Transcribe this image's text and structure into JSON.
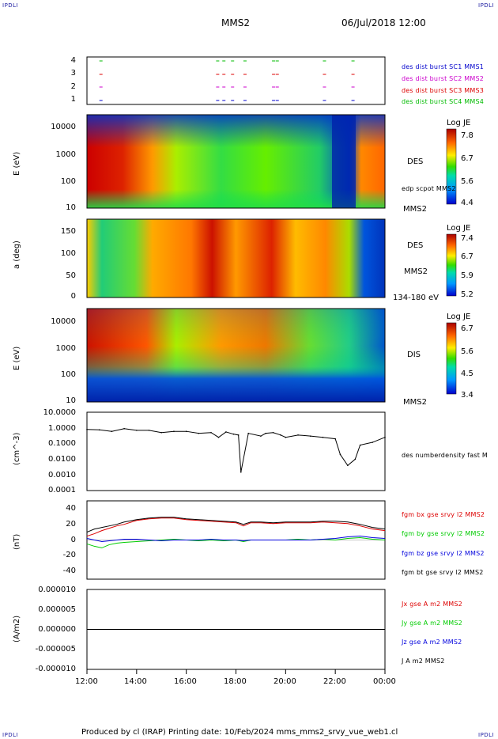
{
  "header": {
    "corner_tl": "IPDLI",
    "corner_tr": "IPDLI",
    "corner_bl": "IPDLI",
    "corner_br": "IPDLI",
    "spacecraft": "MMS2",
    "datetime": "06/Jul/2018 12:00"
  },
  "footer": {
    "credit": "Produced by cl (IRAP)   Printing date: 10/Feb/2024   mms_mms2_srvy_vue_web1.cl"
  },
  "colors": {
    "c1": "#0000cc",
    "c2": "#cc00cc",
    "c3": "#dd0000",
    "c4": "#00bb00",
    "bx": "#dd0000",
    "by": "#00cc00",
    "bz": "#0000dd",
    "bt": "#000000"
  },
  "chart_data": [
    {
      "type": "scatter",
      "panel": "burst",
      "yticks": [
        "1",
        "2",
        "3",
        "4"
      ],
      "ylim": [
        0.5,
        4.5
      ],
      "legend": [
        {
          "name": "des dist burst SC1 MMS1",
          "color": "#0000cc"
        },
        {
          "name": "des dist burst SC2 MMS2",
          "color": "#cc00cc"
        },
        {
          "name": "des dist burst SC3 MMS3",
          "color": "#dd0000"
        },
        {
          "name": "des dist burst SC4 MMS4",
          "color": "#00bb00"
        }
      ],
      "burst_times_h": [
        12.5,
        17.2,
        17.45,
        17.8,
        18.3,
        19.45,
        19.6,
        21.5,
        22.65
      ]
    },
    {
      "type": "heatmap",
      "panel": "des-energy",
      "ylabel": "E (eV)",
      "yticks": [
        "10",
        "100",
        "1000",
        "10000"
      ],
      "ylim_log": [
        1,
        4.4
      ],
      "instrument": "DES",
      "extra_label": "edp scpot MMS2",
      "sc_label": "MMS2",
      "colorbar": {
        "title": "Log JE",
        "ticks": [
          "7.8",
          "6.7",
          "5.6",
          "4.4"
        ]
      }
    },
    {
      "type": "heatmap",
      "panel": "des-pitch",
      "ylabel": "a (deg)",
      "yticks": [
        "0",
        "50",
        "100",
        "150"
      ],
      "ylim": [
        0,
        180
      ],
      "instrument": "DES",
      "sc_label": "MMS2",
      "energy_range": "134-180 eV",
      "colorbar": {
        "title": "Log JE",
        "ticks": [
          "7.4",
          "6.7",
          "5.9",
          "5.2"
        ]
      }
    },
    {
      "type": "heatmap",
      "panel": "dis-energy",
      "ylabel": "E (eV)",
      "yticks": [
        "10",
        "100",
        "1000",
        "10000"
      ],
      "ylim_log": [
        1,
        4.4
      ],
      "instrument": "DIS",
      "sc_label": "MMS2",
      "colorbar": {
        "title": "Log JE",
        "ticks": [
          "6.7",
          "5.6",
          "4.5",
          "3.4"
        ]
      }
    },
    {
      "type": "line",
      "panel": "density",
      "ylabel": "(cm^-3)",
      "yticks": [
        "10.0000",
        "1.0000",
        "0.1000",
        "0.0100",
        "0.0010",
        "0.0001"
      ],
      "ylim_log": [
        -4,
        1
      ],
      "legend": [
        {
          "name": "des numberdensity fast M",
          "color": "#000000"
        }
      ],
      "series": [
        {
          "x": [
            12,
            12.5,
            13,
            13.5,
            14,
            14.5,
            15,
            15.5,
            16,
            16.5,
            17,
            17.3,
            17.6,
            17.9,
            18.1,
            18.2,
            18.5,
            19,
            19.2,
            19.5,
            19.8,
            20,
            20.5,
            21,
            21.5,
            22,
            22.2,
            22.5,
            22.8,
            23,
            23.5,
            24
          ],
          "y": [
            0.8,
            0.75,
            0.6,
            0.9,
            0.7,
            0.7,
            0.5,
            0.6,
            0.6,
            0.45,
            0.5,
            0.25,
            0.55,
            0.4,
            0.35,
            0.0015,
            0.45,
            0.3,
            0.45,
            0.5,
            0.35,
            0.25,
            0.35,
            0.3,
            0.25,
            0.2,
            0.02,
            0.004,
            0.01,
            0.08,
            0.12,
            0.25
          ]
        }
      ]
    },
    {
      "type": "line",
      "panel": "magnetic-field",
      "ylabel": "(nT)",
      "yticks": [
        "40",
        "20",
        "0",
        "-20",
        "-40"
      ],
      "ylim": [
        -50,
        50
      ],
      "legend": [
        {
          "name": "fgm bx gse srvy l2 MMS2",
          "color": "#dd0000"
        },
        {
          "name": "fgm by gse srvy l2 MMS2",
          "color": "#00cc00"
        },
        {
          "name": "fgm bz gse srvy l2 MMS2",
          "color": "#0000dd"
        },
        {
          "name": "fgm bt gse srvy l2 MMS2",
          "color": "#000000"
        }
      ],
      "x": [
        12,
        12.3,
        12.6,
        12.9,
        13.2,
        13.5,
        14,
        14.5,
        15,
        15.5,
        16,
        16.5,
        17,
        17.5,
        18,
        18.3,
        18.6,
        19,
        19.5,
        20,
        20.5,
        21,
        21.5,
        22,
        22.5,
        23,
        23.5,
        24
      ],
      "series": [
        {
          "name": "bx",
          "values": [
            5,
            8,
            12,
            15,
            18,
            20,
            25,
            27,
            28,
            28,
            26,
            25,
            24,
            23,
            22,
            18,
            22,
            22,
            21,
            22,
            22,
            22,
            23,
            22,
            21,
            18,
            14,
            12
          ]
        },
        {
          "name": "by",
          "values": [
            -5,
            -8,
            -10,
            -6,
            -4,
            -3,
            -2,
            -1,
            0,
            1,
            0,
            -1,
            0,
            -1,
            0,
            -2,
            0,
            0,
            0,
            0,
            1,
            0,
            1,
            0,
            2,
            3,
            1,
            0
          ]
        },
        {
          "name": "bz",
          "values": [
            2,
            0,
            -2,
            -1,
            0,
            1,
            1,
            0,
            -1,
            0,
            0,
            0,
            1,
            0,
            0,
            -1,
            0,
            0,
            0,
            0,
            0,
            0,
            1,
            2,
            4,
            5,
            3,
            2
          ]
        },
        {
          "name": "bt",
          "values": [
            10,
            14,
            16,
            18,
            20,
            23,
            26,
            28,
            29,
            29,
            27,
            26,
            25,
            24,
            23,
            20,
            23,
            23,
            22,
            23,
            23,
            23,
            24,
            24,
            23,
            20,
            16,
            14
          ]
        }
      ]
    },
    {
      "type": "line",
      "panel": "current-density",
      "ylabel": "(A/m2)",
      "yticks": [
        "0.000010",
        "0.000005",
        "0.000000",
        "-0.000005",
        "-0.000010"
      ],
      "ylim": [
        -1e-05,
        1e-05
      ],
      "legend": [
        {
          "name": "Jx gse A m2 MMS2",
          "color": "#dd0000"
        },
        {
          "name": "Jy gse A m2 MMS2",
          "color": "#00cc00"
        },
        {
          "name": "Jz gse A m2 MMS2",
          "color": "#0000dd"
        },
        {
          "name": "J A m2 MMS2",
          "color": "#000000"
        }
      ],
      "x": [
        12,
        24
      ],
      "series": [
        {
          "name": "J",
          "values": [
            0,
            0
          ]
        }
      ]
    }
  ],
  "xaxis": {
    "ticks": [
      "12:00",
      "14:00",
      "16:00",
      "18:00",
      "20:00",
      "22:00",
      "00:00"
    ]
  }
}
